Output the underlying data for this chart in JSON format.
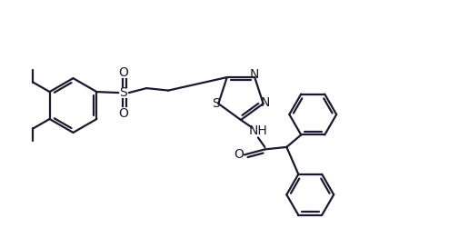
{
  "bg_color": "#ffffff",
  "line_color": "#1a1a2e",
  "line_width": 1.6,
  "figsize": [
    5.05,
    2.62
  ],
  "dpi": 100,
  "xlim": [
    0,
    10.1
  ],
  "ylim": [
    0,
    5.2
  ]
}
